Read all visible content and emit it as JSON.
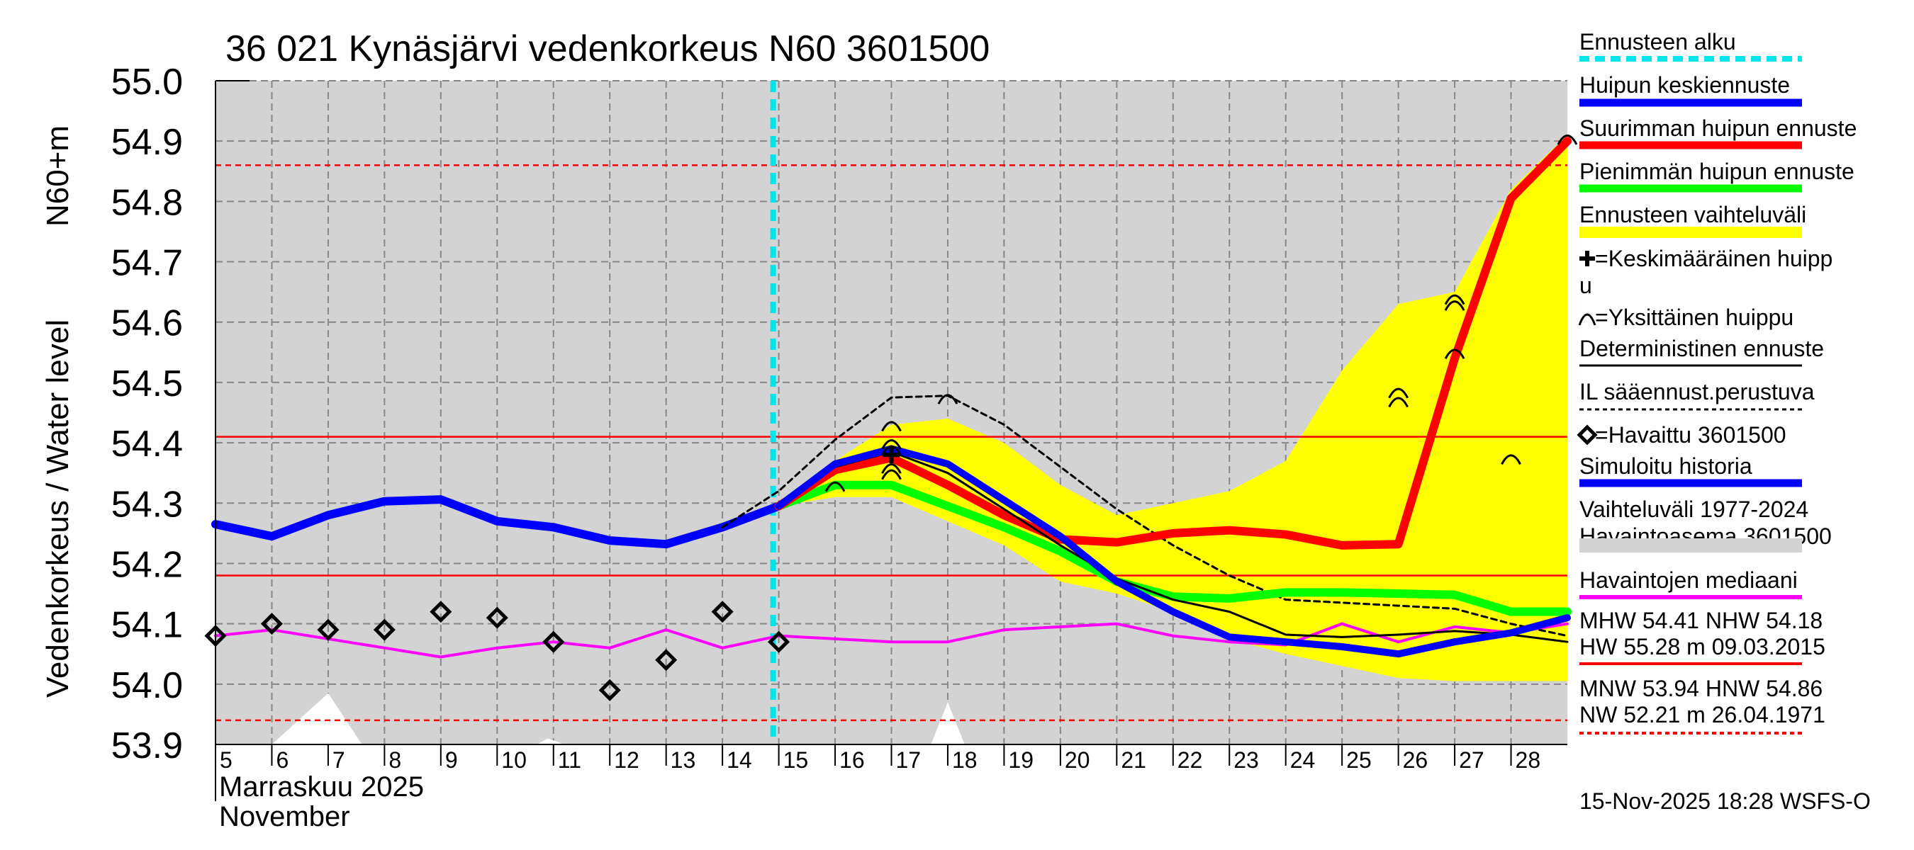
{
  "chart_data": {
    "type": "line",
    "title": "36 021 Kynäsjärvi vedenkorkeus N60 3601500",
    "ylabel_main": "Vedenkorkeus / Water level",
    "ylabel_unit": "N60+m",
    "ylim": [
      53.9,
      55.0
    ],
    "yticks": [
      "53.9",
      "54.0",
      "54.1",
      "54.2",
      "54.3",
      "54.4",
      "54.5",
      "54.6",
      "54.7",
      "54.8",
      "54.9",
      "55.0"
    ],
    "xlim": [
      4.9,
      28.9
    ],
    "day_labels": [
      "5",
      "6",
      "7",
      "8",
      "9",
      "10",
      "11",
      "12",
      "13",
      "14",
      "15",
      "16",
      "17",
      "18",
      "19",
      "20",
      "21",
      "22",
      "23",
      "24",
      "25",
      "26",
      "27",
      "28"
    ],
    "month_fi": "Marraskuu 2025",
    "month_en": "November",
    "forecast_start_day": 14.8,
    "grid": true,
    "colors": {
      "background": "#d3d3d3",
      "forecast_start": "#00e5ee",
      "mean_forecast": "#0000ff",
      "max_peak": "#ff0000",
      "min_peak": "#00ff00",
      "range": "#ffff00",
      "deterministic": "#000000",
      "il_forecast": "#000000",
      "observed": "#000000",
      "simulated": "#0000ff",
      "median": "#ff00ff",
      "ref_solid": "#ff0000",
      "ref_dashed": "#ff0000"
    },
    "reference_lines": [
      {
        "value": 54.86,
        "style": "dashed"
      },
      {
        "value": 54.41,
        "style": "solid"
      },
      {
        "value": 54.18,
        "style": "solid"
      },
      {
        "value": 53.94,
        "style": "dashed"
      }
    ],
    "series": [
      {
        "key": "simulated",
        "x": [
          4.9,
          5.9,
          6.9,
          7.9,
          8.9,
          9.9,
          10.9,
          11.9,
          12.9,
          13.9,
          14.9
        ],
        "y": [
          54.265,
          54.245,
          54.28,
          54.303,
          54.306,
          54.27,
          54.26,
          54.238,
          54.232,
          54.26,
          54.295
        ]
      },
      {
        "key": "median",
        "x": [
          4.9,
          5.9,
          6.9,
          7.9,
          8.9,
          9.9,
          10.9,
          11.9,
          12.9,
          13.9,
          14.9,
          15.9,
          16.9,
          17.9,
          18.9,
          19.9,
          20.9,
          21.9,
          22.9,
          23.9,
          24.9,
          25.9,
          26.9,
          27.9,
          28.9
        ],
        "y": [
          54.08,
          54.09,
          54.075,
          54.06,
          54.045,
          54.06,
          54.07,
          54.06,
          54.09,
          54.06,
          54.08,
          54.075,
          54.07,
          54.07,
          54.09,
          54.095,
          54.1,
          54.08,
          54.07,
          54.065,
          54.1,
          54.07,
          54.095,
          54.085,
          54.1
        ]
      },
      {
        "key": "mean_forecast",
        "x": [
          14.9,
          15.9,
          16.9,
          17.9,
          18.9,
          19.9,
          20.9,
          21.9,
          22.9,
          23.9,
          24.9,
          25.9,
          26.9,
          27.9,
          28.9
        ],
        "y": [
          54.295,
          54.365,
          54.39,
          54.365,
          54.305,
          54.245,
          54.17,
          54.12,
          54.078,
          54.07,
          54.062,
          54.05,
          54.07,
          54.085,
          54.11
        ]
      },
      {
        "key": "max_peak",
        "x": [
          14.9,
          15.9,
          16.9,
          17.9,
          18.9,
          19.9,
          20.9,
          21.9,
          22.9,
          23.9,
          24.9,
          25.9,
          26.9,
          27.9,
          28.9
        ],
        "y": [
          54.295,
          54.355,
          54.375,
          54.33,
          54.28,
          54.24,
          54.235,
          54.25,
          54.255,
          54.248,
          54.23,
          54.232,
          54.54,
          54.805,
          54.9
        ]
      },
      {
        "key": "min_peak",
        "x": [
          14.9,
          15.9,
          16.9,
          17.9,
          18.9,
          19.9,
          20.9,
          21.9,
          22.9,
          23.9,
          24.9,
          25.9,
          26.9,
          27.9,
          28.9
        ],
        "y": [
          54.295,
          54.33,
          54.33,
          54.295,
          54.26,
          54.22,
          54.17,
          54.145,
          54.142,
          54.152,
          54.152,
          54.15,
          54.148,
          54.12,
          54.12
        ]
      },
      {
        "key": "deterministic",
        "x": [
          14.9,
          15.9,
          16.9,
          17.9,
          18.9,
          19.9,
          20.9,
          21.9,
          22.9,
          23.9,
          24.9,
          25.9,
          26.9,
          27.9,
          28.9
        ],
        "y": [
          54.295,
          54.36,
          54.385,
          54.35,
          54.29,
          54.23,
          54.175,
          54.14,
          54.12,
          54.082,
          54.078,
          54.082,
          54.088,
          54.082,
          54.07
        ]
      },
      {
        "key": "il_forecast",
        "x": [
          13.9,
          14.9,
          15.9,
          16.9,
          17.9,
          18.9,
          19.9,
          20.9,
          21.9,
          22.9,
          23.9,
          24.9,
          25.9,
          26.9,
          27.9,
          28.9
        ],
        "y": [
          54.26,
          54.32,
          54.405,
          54.475,
          54.478,
          54.43,
          54.36,
          54.29,
          54.23,
          54.18,
          54.14,
          54.135,
          54.13,
          54.125,
          54.1,
          54.08
        ]
      }
    ],
    "range_band": {
      "x": [
        14.9,
        15.9,
        16.9,
        17.9,
        18.9,
        19.9,
        20.9,
        21.9,
        22.9,
        23.9,
        24.9,
        25.9,
        26.9,
        27.9,
        28.9
      ],
      "upper": [
        54.295,
        54.37,
        54.43,
        54.44,
        54.4,
        54.33,
        54.28,
        54.3,
        54.32,
        54.37,
        54.52,
        54.63,
        54.65,
        54.82,
        54.91
      ],
      "lower": [
        54.295,
        54.31,
        54.31,
        54.27,
        54.23,
        54.17,
        54.15,
        54.12,
        54.075,
        54.05,
        54.03,
        54.01,
        54.005,
        54.005,
        54.005
      ]
    },
    "observed": {
      "x": [
        4.9,
        5.9,
        6.9,
        7.9,
        8.9,
        9.9,
        10.9,
        11.9,
        12.9,
        13.9,
        14.9
      ],
      "y": [
        54.08,
        54.1,
        54.09,
        54.09,
        54.12,
        54.11,
        54.07,
        53.99,
        54.04,
        54.12,
        54.07
      ]
    },
    "single_peaks": [
      {
        "x": 15.9,
        "y": 54.33
      },
      {
        "x": 16.9,
        "y": 54.43
      },
      {
        "x": 16.9,
        "y": 54.4
      },
      {
        "x": 16.9,
        "y": 54.39
      },
      {
        "x": 16.9,
        "y": 54.36
      },
      {
        "x": 16.9,
        "y": 54.35
      },
      {
        "x": 17.9,
        "y": 54.475
      },
      {
        "x": 25.9,
        "y": 54.485
      },
      {
        "x": 25.9,
        "y": 54.47
      },
      {
        "x": 26.9,
        "y": 54.64
      },
      {
        "x": 26.9,
        "y": 54.63
      },
      {
        "x": 26.9,
        "y": 54.55
      },
      {
        "x": 27.9,
        "y": 54.375
      },
      {
        "x": 28.9,
        "y": 54.905
      }
    ],
    "mean_peak_markers": [
      {
        "x": 16.9,
        "y": 54.38
      }
    ],
    "historical_range_shapes": [
      {
        "x0": 5.9,
        "x1": 7.5,
        "peak_x": 6.9,
        "peak_y": 53.985
      },
      {
        "x0": 10.6,
        "x1": 11.1,
        "peak_x": 10.8,
        "peak_y": 53.91
      },
      {
        "x0": 17.6,
        "x1": 18.2,
        "peak_x": 17.9,
        "peak_y": 53.97
      },
      {
        "x0": 26.8,
        "x1": 27.3,
        "peak_x": 26.9,
        "peak_y": 53.895
      }
    ],
    "legend": {
      "items": [
        {
          "label": "Ennusteen alku",
          "swatch": "dashed",
          "color": "#00e5ee"
        },
        {
          "label": "Huipun keskiennuste",
          "swatch": "thick",
          "color": "#0000ff"
        },
        {
          "label": "Suurimman huipun ennuste",
          "swatch": "thick",
          "color": "#ff0000"
        },
        {
          "label": "Pienimmän huipun ennuste",
          "swatch": "thick",
          "color": "#00ff00"
        },
        {
          "label": "Ennusteen vaihteluväli",
          "swatch": "band",
          "color": "#ffff00"
        },
        {
          "label": "=Keskimääräinen huipp",
          "label2": "u",
          "swatch": "plus",
          "color": "#000000"
        },
        {
          "label": "=Yksittäinen huippu",
          "swatch": "arc",
          "color": "#000000"
        },
        {
          "label": "Deterministinen ennuste",
          "swatch": "thin",
          "color": "#000000"
        },
        {
          "label": "IL sääennust.perustuva",
          "swatch": "dotted",
          "color": "#000000"
        },
        {
          "label": "=Havaittu 3601500",
          "swatch": "diamond",
          "color": "#000000"
        },
        {
          "label": "Simuloitu historia",
          "swatch": "thick",
          "color": "#0000ff"
        },
        {
          "label": "Vaihteluväli 1977-2024",
          "label2": " Havaintoasema 3601500",
          "swatch": "grayband",
          "color": "#d3d3d3"
        },
        {
          "label": "Havaintojen mediaani",
          "swatch": "mid",
          "color": "#ff00ff"
        }
      ],
      "stats1_line1": "MHW  54.41 NHW  54.18",
      "stats1_line2": "HW  55.28 m 09.03.2015",
      "stats2_line1": "MNW  53.94 HNW  54.86",
      "stats2_line2": "NW  52.21 m 26.04.1971"
    },
    "footer": "15-Nov-2025 18:28 WSFS-O"
  }
}
